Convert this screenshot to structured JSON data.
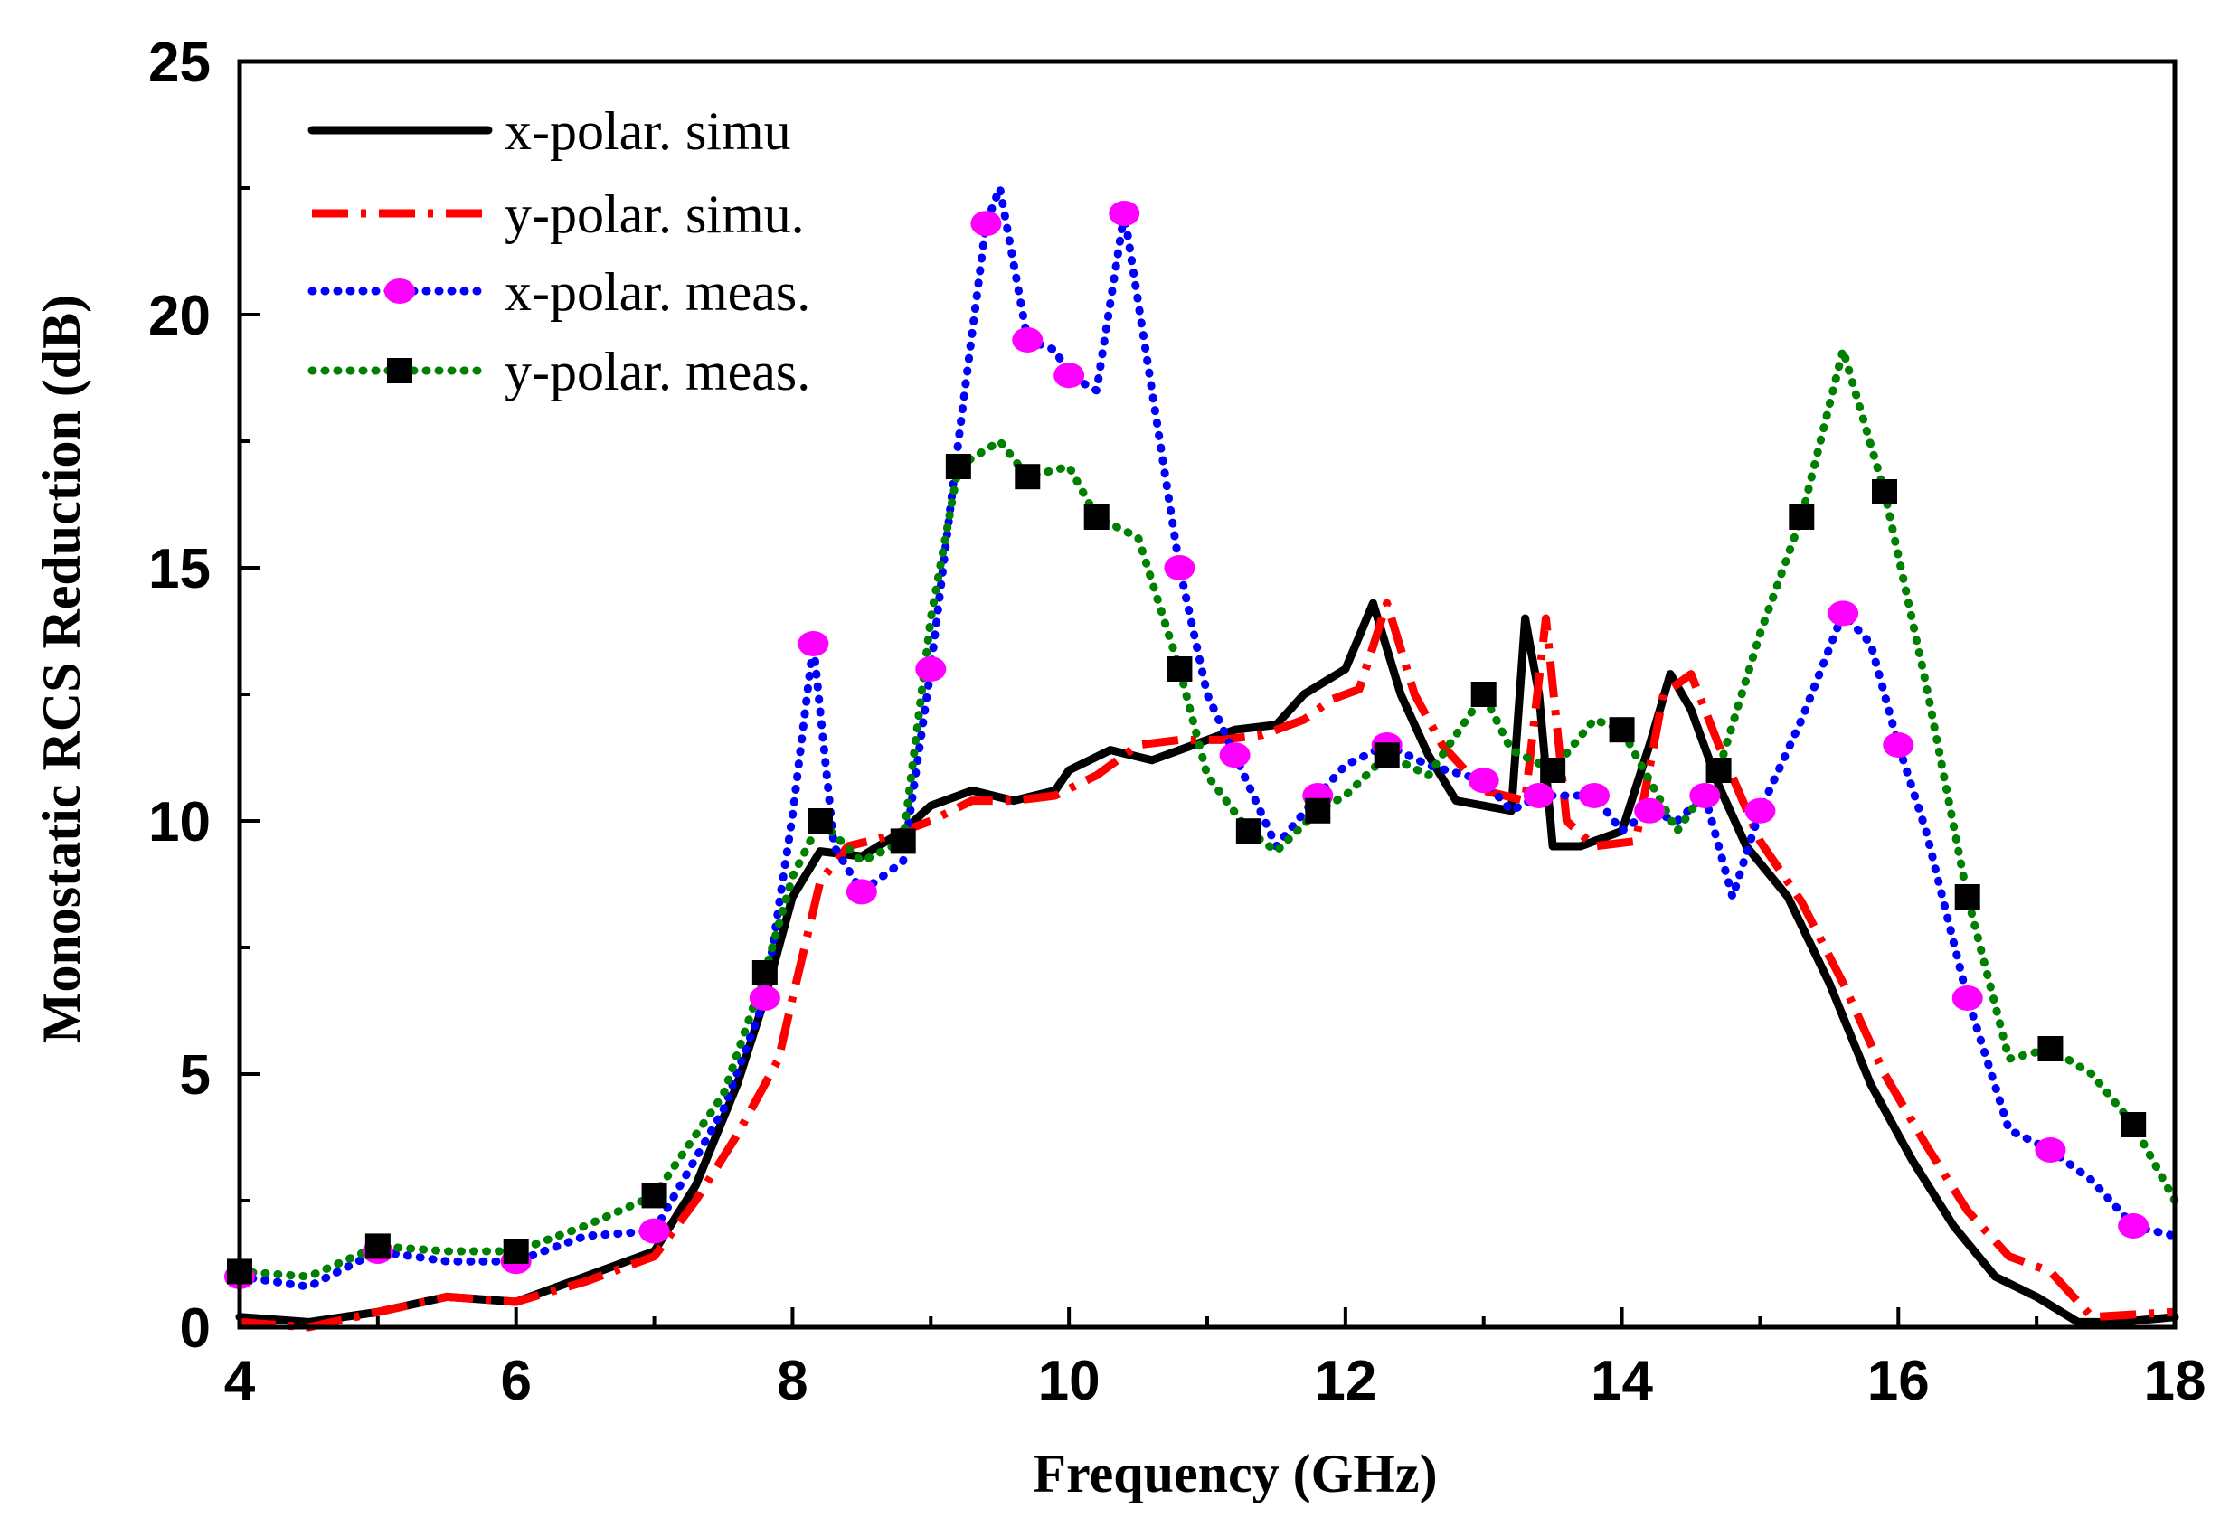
{
  "chart_data": {
    "type": "line",
    "title": "",
    "xlabel": "Frequency (GHz)",
    "ylabel": "Monostatic RCS Reduction (dB)",
    "xlim": [
      4,
      18
    ],
    "ylim": [
      0,
      25
    ],
    "xticks": [
      4,
      6,
      8,
      10,
      12,
      14,
      16,
      18
    ],
    "xtick_labels": [
      "4",
      "6",
      "8",
      "10",
      "12",
      "14",
      "16",
      "18"
    ],
    "yticks": [
      0,
      5,
      10,
      15,
      20,
      25
    ],
    "ytick_labels": [
      "0",
      "5",
      "10",
      "15",
      "20",
      "25"
    ],
    "grid": false,
    "legend_position": "top-left",
    "series": [
      {
        "name": "x-polar. simu",
        "color": "#000000",
        "style": "solid",
        "marker": "none",
        "x": [
          4.0,
          4.5,
          5.0,
          5.5,
          6.0,
          6.5,
          7.0,
          7.3,
          7.6,
          7.8,
          8.0,
          8.2,
          8.5,
          8.8,
          9.0,
          9.3,
          9.6,
          9.9,
          10.0,
          10.3,
          10.6,
          10.9,
          11.2,
          11.5,
          11.7,
          12.0,
          12.2,
          12.4,
          12.6,
          12.8,
          13.0,
          13.2,
          13.3,
          13.4,
          13.5,
          13.7,
          14.0,
          14.2,
          14.35,
          14.5,
          14.7,
          14.9,
          15.2,
          15.5,
          15.8,
          16.1,
          16.4,
          16.7,
          17.0,
          17.3,
          17.6,
          18.0
        ],
        "y": [
          0.2,
          0.1,
          0.3,
          0.6,
          0.5,
          1.0,
          1.5,
          2.8,
          4.8,
          6.5,
          8.5,
          9.4,
          9.3,
          9.8,
          10.3,
          10.6,
          10.4,
          10.6,
          11.0,
          11.4,
          11.2,
          11.5,
          11.8,
          11.9,
          12.5,
          13.0,
          14.3,
          12.5,
          11.3,
          10.4,
          10.3,
          10.2,
          14.0,
          12.5,
          9.5,
          9.5,
          9.8,
          11.5,
          12.9,
          12.2,
          10.7,
          9.5,
          8.5,
          6.8,
          4.8,
          3.3,
          2.0,
          1.0,
          0.6,
          0.1,
          0.1,
          0.2
        ]
      },
      {
        "name": "y-polar. simu.",
        "color": "#ff0000",
        "style": "dash-dot",
        "marker": "none",
        "x": [
          4.0,
          4.5,
          5.0,
          5.5,
          6.0,
          6.5,
          7.0,
          7.3,
          7.6,
          7.9,
          8.0,
          8.2,
          8.4,
          8.7,
          9.0,
          9.3,
          9.6,
          9.9,
          10.2,
          10.5,
          10.8,
          11.1,
          11.4,
          11.7,
          11.9,
          12.1,
          12.3,
          12.5,
          12.7,
          13.0,
          13.3,
          13.45,
          13.6,
          13.8,
          14.1,
          14.3,
          14.5,
          14.7,
          15.0,
          15.3,
          15.6,
          15.9,
          16.2,
          16.5,
          16.8,
          17.1,
          17.4,
          18.0
        ],
        "y": [
          0.1,
          0.0,
          0.3,
          0.6,
          0.5,
          0.9,
          1.4,
          2.5,
          3.8,
          5.3,
          6.5,
          8.8,
          9.5,
          9.7,
          10.0,
          10.4,
          10.4,
          10.5,
          10.9,
          11.5,
          11.6,
          11.6,
          11.7,
          12.0,
          12.4,
          12.6,
          14.3,
          12.5,
          11.5,
          10.6,
          10.4,
          14.0,
          10.0,
          9.5,
          9.6,
          12.5,
          12.9,
          11.5,
          9.6,
          8.4,
          6.8,
          5.0,
          3.6,
          2.3,
          1.4,
          1.1,
          0.2,
          0.3
        ]
      },
      {
        "name": "x-polar. meas.",
        "color": "#0000ff",
        "style": "dotted",
        "marker": "circle",
        "marker_color": "#ff00ff",
        "x": [
          4.0,
          4.5,
          5.0,
          5.5,
          6.0,
          6.5,
          7.0,
          7.5,
          7.8,
          8.0,
          8.15,
          8.3,
          8.5,
          8.8,
          9.0,
          9.2,
          9.4,
          9.5,
          9.7,
          9.9,
          10.0,
          10.2,
          10.4,
          10.6,
          10.8,
          11.0,
          11.2,
          11.5,
          11.8,
          12.0,
          12.3,
          12.6,
          13.0,
          13.2,
          13.4,
          13.6,
          13.8,
          14.0,
          14.2,
          14.4,
          14.6,
          14.8,
          15.0,
          15.3,
          15.6,
          15.8,
          16.0,
          16.2,
          16.5,
          16.8,
          17.1,
          17.4,
          17.7,
          18.0
        ],
        "y": [
          1.0,
          0.8,
          1.5,
          1.3,
          1.3,
          1.8,
          1.9,
          4.3,
          6.5,
          10.1,
          13.5,
          9.5,
          8.6,
          9.2,
          13.0,
          17.5,
          21.8,
          22.5,
          19.5,
          19.3,
          18.8,
          18.5,
          22.0,
          18.5,
          15.0,
          12.5,
          11.3,
          9.5,
          10.5,
          11.1,
          11.5,
          11.1,
          10.8,
          10.2,
          10.5,
          10.5,
          10.5,
          9.8,
          10.2,
          10.0,
          10.5,
          8.5,
          10.2,
          12.0,
          14.1,
          13.5,
          11.5,
          9.8,
          6.5,
          3.9,
          3.5,
          2.9,
          2.0,
          1.8
        ]
      },
      {
        "name": "y-polar. meas.",
        "color": "#008000",
        "style": "dotted",
        "marker": "square",
        "marker_color": "#000000",
        "x": [
          4.0,
          4.5,
          5.0,
          5.5,
          6.0,
          6.5,
          7.0,
          7.5,
          7.8,
          8.0,
          8.2,
          8.5,
          8.8,
          9.0,
          9.2,
          9.5,
          9.7,
          10.0,
          10.2,
          10.5,
          10.8,
          11.0,
          11.3,
          11.5,
          11.8,
          12.0,
          12.3,
          12.6,
          13.0,
          13.2,
          13.5,
          13.8,
          14.0,
          14.4,
          14.7,
          15.0,
          15.3,
          15.6,
          15.9,
          16.2,
          16.5,
          16.8,
          17.1,
          17.4,
          17.7,
          18.0
        ],
        "y": [
          1.1,
          1.0,
          1.6,
          1.5,
          1.5,
          2.0,
          2.6,
          4.6,
          7.0,
          8.9,
          10.0,
          9.2,
          9.6,
          14.0,
          17.0,
          17.5,
          16.8,
          17.0,
          16.0,
          15.6,
          13.0,
          10.9,
          9.8,
          9.4,
          10.2,
          10.5,
          11.3,
          10.9,
          12.5,
          11.4,
          11.0,
          12.0,
          11.8,
          9.8,
          11.0,
          13.7,
          16.0,
          19.3,
          16.5,
          12.7,
          8.5,
          5.3,
          5.5,
          5.0,
          4.0,
          2.5
        ]
      }
    ]
  },
  "legend": {
    "items": [
      {
        "label": "x-polar. simu"
      },
      {
        "label": "y-polar. simu."
      },
      {
        "label": "x-polar. meas."
      },
      {
        "label": "y-polar. meas."
      }
    ]
  }
}
